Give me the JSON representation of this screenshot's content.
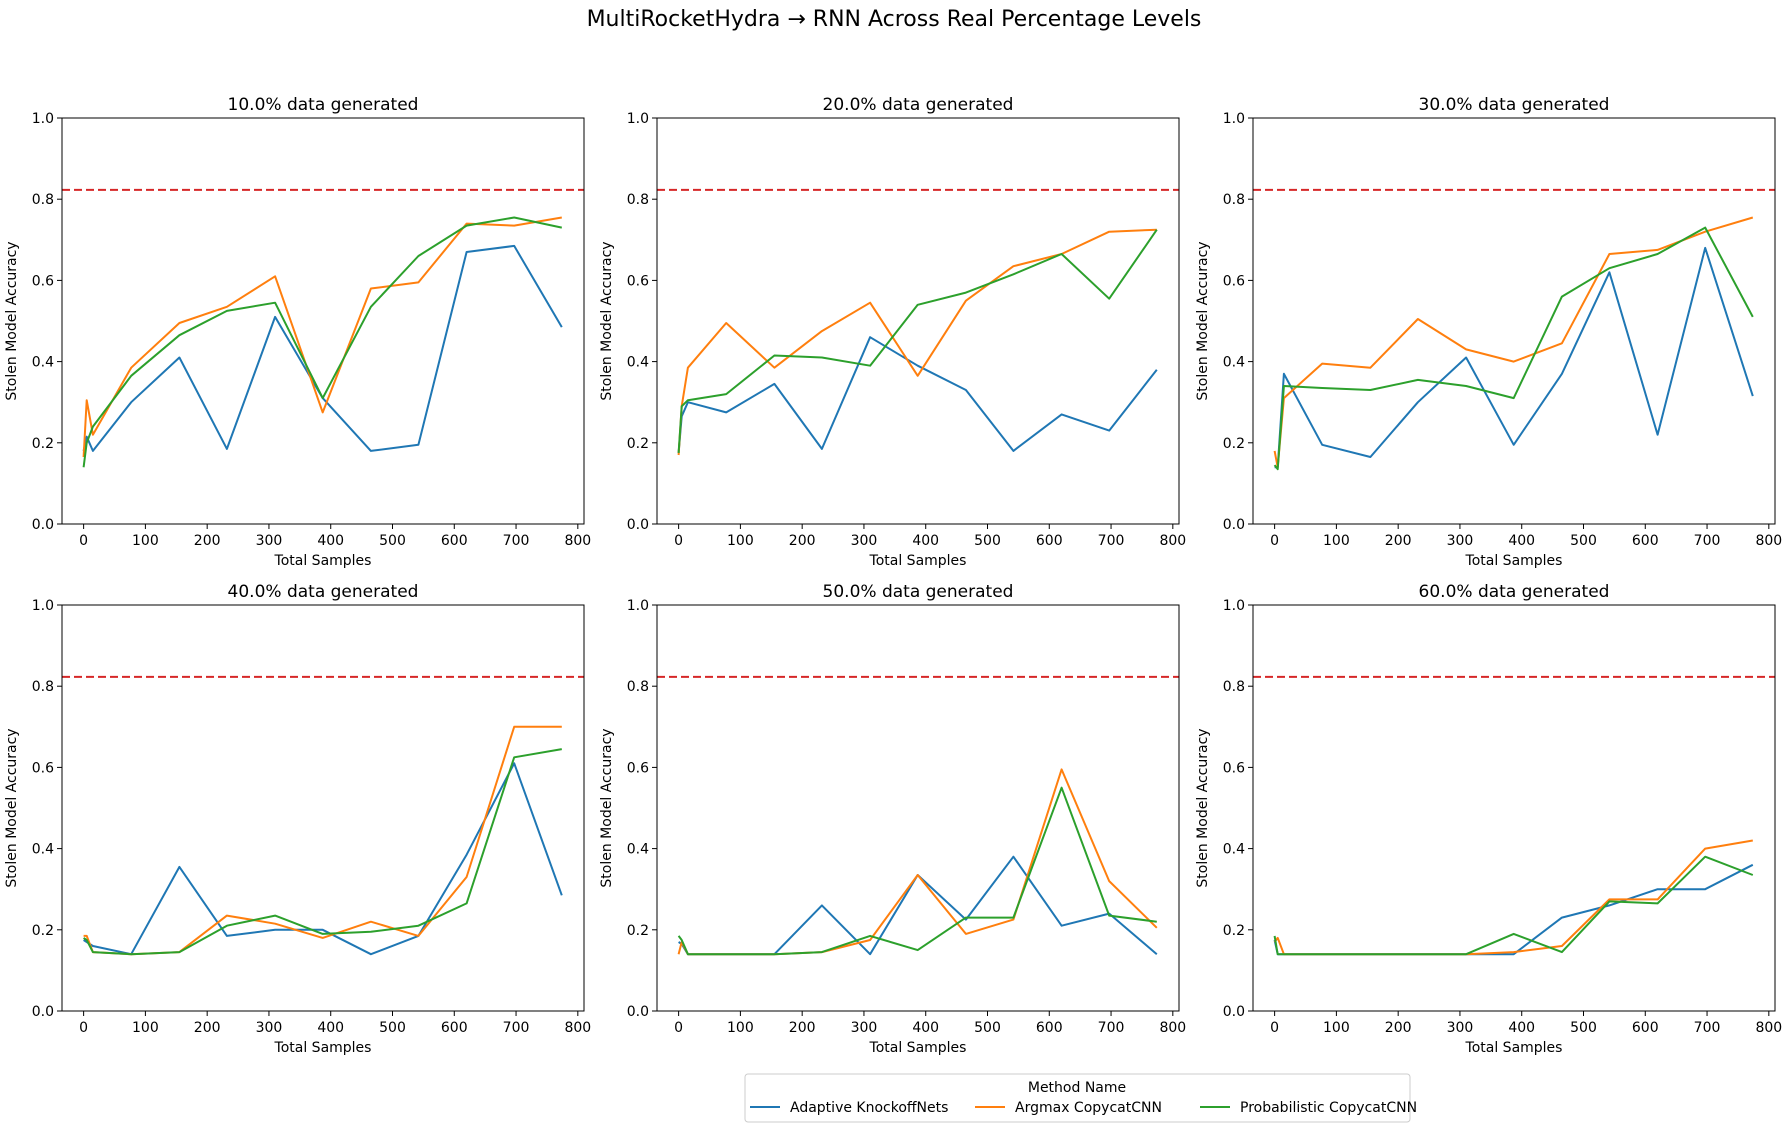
{
  "figure": {
    "title": "MultiRocketHydra → RNN Across Real Percentage Levels",
    "legend_title": "Method Name"
  },
  "colors": {
    "Adaptive KnockoffNets": "#1f77b4",
    "Argmax CopycatCNN": "#ff7f0e",
    "Probabilistic CopycatCNN": "#2ca02c",
    "baseline": "#d62728"
  },
  "chart_data": [
    {
      "type": "line",
      "title": "10.0% data generated",
      "xlabel": "Total Samples",
      "ylabel": "Stolen Model Accuracy",
      "xlim": [
        -35,
        810
      ],
      "ylim": [
        0,
        1.0
      ],
      "xticks": [
        0,
        100,
        200,
        300,
        400,
        500,
        600,
        700,
        800
      ],
      "yticks": [
        0.0,
        0.2,
        0.4,
        0.6,
        0.8,
        1.0
      ],
      "baseline": 0.823,
      "series": [
        {
          "name": "Adaptive KnockoffNets",
          "x": [
            0,
            5,
            15,
            77,
            155,
            232,
            310,
            387,
            465,
            542,
            620,
            697,
            774
          ],
          "y": [
            0.18,
            0.215,
            0.18,
            0.3,
            0.41,
            0.185,
            0.51,
            0.31,
            0.18,
            0.195,
            0.67,
            0.685,
            0.485
          ]
        },
        {
          "name": "Argmax CopycatCNN",
          "x": [
            0,
            5,
            15,
            77,
            155,
            232,
            310,
            387,
            465,
            542,
            620,
            697,
            774
          ],
          "y": [
            0.165,
            0.305,
            0.22,
            0.385,
            0.495,
            0.535,
            0.61,
            0.275,
            0.58,
            0.595,
            0.74,
            0.735,
            0.755
          ]
        },
        {
          "name": "Probabilistic CopycatCNN",
          "x": [
            0,
            5,
            15,
            77,
            155,
            232,
            310,
            387,
            465,
            542,
            620,
            697,
            774
          ],
          "y": [
            0.14,
            0.2,
            0.24,
            0.365,
            0.465,
            0.525,
            0.545,
            0.31,
            0.535,
            0.66,
            0.735,
            0.755,
            0.73
          ]
        }
      ]
    },
    {
      "type": "line",
      "title": "20.0% data generated",
      "xlabel": "Total Samples",
      "ylabel": "Stolen Model Accuracy",
      "xlim": [
        -35,
        810
      ],
      "ylim": [
        0,
        1.0
      ],
      "xticks": [
        0,
        100,
        200,
        300,
        400,
        500,
        600,
        700,
        800
      ],
      "yticks": [
        0.0,
        0.2,
        0.4,
        0.6,
        0.8,
        1.0
      ],
      "baseline": 0.823,
      "series": [
        {
          "name": "Adaptive KnockoffNets",
          "x": [
            0,
            5,
            15,
            77,
            155,
            232,
            310,
            387,
            465,
            542,
            620,
            697,
            774
          ],
          "y": [
            0.175,
            0.265,
            0.3,
            0.275,
            0.345,
            0.185,
            0.46,
            0.39,
            0.33,
            0.18,
            0.27,
            0.23,
            0.38
          ]
        },
        {
          "name": "Argmax CopycatCNN",
          "x": [
            0,
            5,
            15,
            77,
            155,
            232,
            310,
            387,
            465,
            542,
            620,
            697,
            774
          ],
          "y": [
            0.17,
            0.29,
            0.385,
            0.495,
            0.385,
            0.475,
            0.545,
            0.365,
            0.55,
            0.635,
            0.665,
            0.72,
            0.725
          ]
        },
        {
          "name": "Probabilistic CopycatCNN",
          "x": [
            0,
            5,
            15,
            77,
            155,
            232,
            310,
            387,
            465,
            542,
            620,
            697,
            774
          ],
          "y": [
            0.175,
            0.29,
            0.305,
            0.32,
            0.415,
            0.41,
            0.39,
            0.54,
            0.57,
            0.615,
            0.665,
            0.555,
            0.725
          ]
        }
      ]
    },
    {
      "type": "line",
      "title": "30.0% data generated",
      "xlabel": "Total Samples",
      "ylabel": "Stolen Model Accuracy",
      "xlim": [
        -35,
        810
      ],
      "ylim": [
        0,
        1.0
      ],
      "xticks": [
        0,
        100,
        200,
        300,
        400,
        500,
        600,
        700,
        800
      ],
      "yticks": [
        0.0,
        0.2,
        0.4,
        0.6,
        0.8,
        1.0
      ],
      "baseline": 0.823,
      "series": [
        {
          "name": "Adaptive KnockoffNets",
          "x": [
            0,
            5,
            15,
            77,
            155,
            232,
            310,
            387,
            465,
            542,
            620,
            697,
            774
          ],
          "y": [
            0.14,
            0.14,
            0.37,
            0.195,
            0.165,
            0.3,
            0.41,
            0.195,
            0.37,
            0.62,
            0.22,
            0.68,
            0.315
          ]
        },
        {
          "name": "Argmax CopycatCNN",
          "x": [
            0,
            5,
            15,
            77,
            155,
            232,
            310,
            387,
            465,
            542,
            620,
            697,
            774
          ],
          "y": [
            0.18,
            0.14,
            0.31,
            0.395,
            0.385,
            0.505,
            0.43,
            0.4,
            0.445,
            0.665,
            0.675,
            0.72,
            0.755
          ]
        },
        {
          "name": "Probabilistic CopycatCNN",
          "x": [
            0,
            5,
            15,
            77,
            155,
            232,
            310,
            387,
            465,
            542,
            620,
            697,
            774
          ],
          "y": [
            0.145,
            0.135,
            0.34,
            0.335,
            0.33,
            0.355,
            0.34,
            0.31,
            0.56,
            0.63,
            0.665,
            0.73,
            0.51
          ]
        }
      ]
    },
    {
      "type": "line",
      "title": "40.0% data generated",
      "xlabel": "Total Samples",
      "ylabel": "Stolen Model Accuracy",
      "xlim": [
        -35,
        810
      ],
      "ylim": [
        0,
        1.0
      ],
      "xticks": [
        0,
        100,
        200,
        300,
        400,
        500,
        600,
        700,
        800
      ],
      "yticks": [
        0.0,
        0.2,
        0.4,
        0.6,
        0.8,
        1.0
      ],
      "baseline": 0.823,
      "series": [
        {
          "name": "Adaptive KnockoffNets",
          "x": [
            0,
            5,
            15,
            77,
            155,
            232,
            310,
            387,
            465,
            542,
            620,
            697,
            774
          ],
          "y": [
            0.175,
            0.17,
            0.16,
            0.14,
            0.355,
            0.185,
            0.2,
            0.2,
            0.14,
            0.185,
            0.385,
            0.61,
            0.285
          ]
        },
        {
          "name": "Argmax CopycatCNN",
          "x": [
            0,
            5,
            15,
            77,
            155,
            232,
            310,
            387,
            465,
            542,
            620,
            697,
            774
          ],
          "y": [
            0.185,
            0.185,
            0.145,
            0.14,
            0.145,
            0.235,
            0.215,
            0.18,
            0.22,
            0.185,
            0.33,
            0.7,
            0.7
          ]
        },
        {
          "name": "Probabilistic CopycatCNN",
          "x": [
            0,
            5,
            15,
            77,
            155,
            232,
            310,
            387,
            465,
            542,
            620,
            697,
            774
          ],
          "y": [
            0.18,
            0.175,
            0.145,
            0.14,
            0.145,
            0.21,
            0.235,
            0.19,
            0.195,
            0.21,
            0.265,
            0.625,
            0.645
          ]
        }
      ]
    },
    {
      "type": "line",
      "title": "50.0% data generated",
      "xlabel": "Total Samples",
      "ylabel": "Stolen Model Accuracy",
      "xlim": [
        -35,
        810
      ],
      "ylim": [
        0,
        1.0
      ],
      "xticks": [
        0,
        100,
        200,
        300,
        400,
        500,
        600,
        700,
        800
      ],
      "yticks": [
        0.0,
        0.2,
        0.4,
        0.6,
        0.8,
        1.0
      ],
      "baseline": 0.823,
      "series": [
        {
          "name": "Adaptive KnockoffNets",
          "x": [
            0,
            5,
            15,
            77,
            155,
            232,
            310,
            387,
            465,
            542,
            620,
            697,
            774
          ],
          "y": [
            0.17,
            0.165,
            0.14,
            0.14,
            0.14,
            0.26,
            0.14,
            0.335,
            0.225,
            0.38,
            0.21,
            0.24,
            0.14
          ]
        },
        {
          "name": "Argmax CopycatCNN",
          "x": [
            0,
            5,
            15,
            77,
            155,
            232,
            310,
            387,
            465,
            542,
            620,
            697,
            774
          ],
          "y": [
            0.14,
            0.17,
            0.14,
            0.14,
            0.14,
            0.145,
            0.175,
            0.335,
            0.19,
            0.225,
            0.595,
            0.32,
            0.205
          ]
        },
        {
          "name": "Probabilistic CopycatCNN",
          "x": [
            0,
            5,
            15,
            77,
            155,
            232,
            310,
            387,
            465,
            542,
            620,
            697,
            774
          ],
          "y": [
            0.185,
            0.175,
            0.14,
            0.14,
            0.14,
            0.145,
            0.185,
            0.15,
            0.23,
            0.23,
            0.55,
            0.235,
            0.22
          ]
        }
      ]
    },
    {
      "type": "line",
      "title": "60.0% data generated",
      "xlabel": "Total Samples",
      "ylabel": "Stolen Model Accuracy",
      "xlim": [
        -35,
        810
      ],
      "ylim": [
        0,
        1.0
      ],
      "xticks": [
        0,
        100,
        200,
        300,
        400,
        500,
        600,
        700,
        800
      ],
      "yticks": [
        0.0,
        0.2,
        0.4,
        0.6,
        0.8,
        1.0
      ],
      "baseline": 0.823,
      "series": [
        {
          "name": "Adaptive KnockoffNets",
          "x": [
            0,
            5,
            15,
            77,
            155,
            232,
            310,
            387,
            465,
            542,
            620,
            697,
            774
          ],
          "y": [
            0.175,
            0.14,
            0.14,
            0.14,
            0.14,
            0.14,
            0.14,
            0.14,
            0.23,
            0.26,
            0.3,
            0.3,
            0.36
          ]
        },
        {
          "name": "Argmax CopycatCNN",
          "x": [
            0,
            5,
            15,
            77,
            155,
            232,
            310,
            387,
            465,
            542,
            620,
            697,
            774
          ],
          "y": [
            0.17,
            0.18,
            0.14,
            0.14,
            0.14,
            0.14,
            0.14,
            0.145,
            0.16,
            0.275,
            0.275,
            0.4,
            0.42
          ]
        },
        {
          "name": "Probabilistic CopycatCNN",
          "x": [
            0,
            5,
            15,
            77,
            155,
            232,
            310,
            387,
            465,
            542,
            620,
            697,
            774
          ],
          "y": [
            0.185,
            0.14,
            0.14,
            0.14,
            0.14,
            0.14,
            0.14,
            0.19,
            0.145,
            0.27,
            0.265,
            0.38,
            0.335
          ]
        }
      ]
    }
  ]
}
